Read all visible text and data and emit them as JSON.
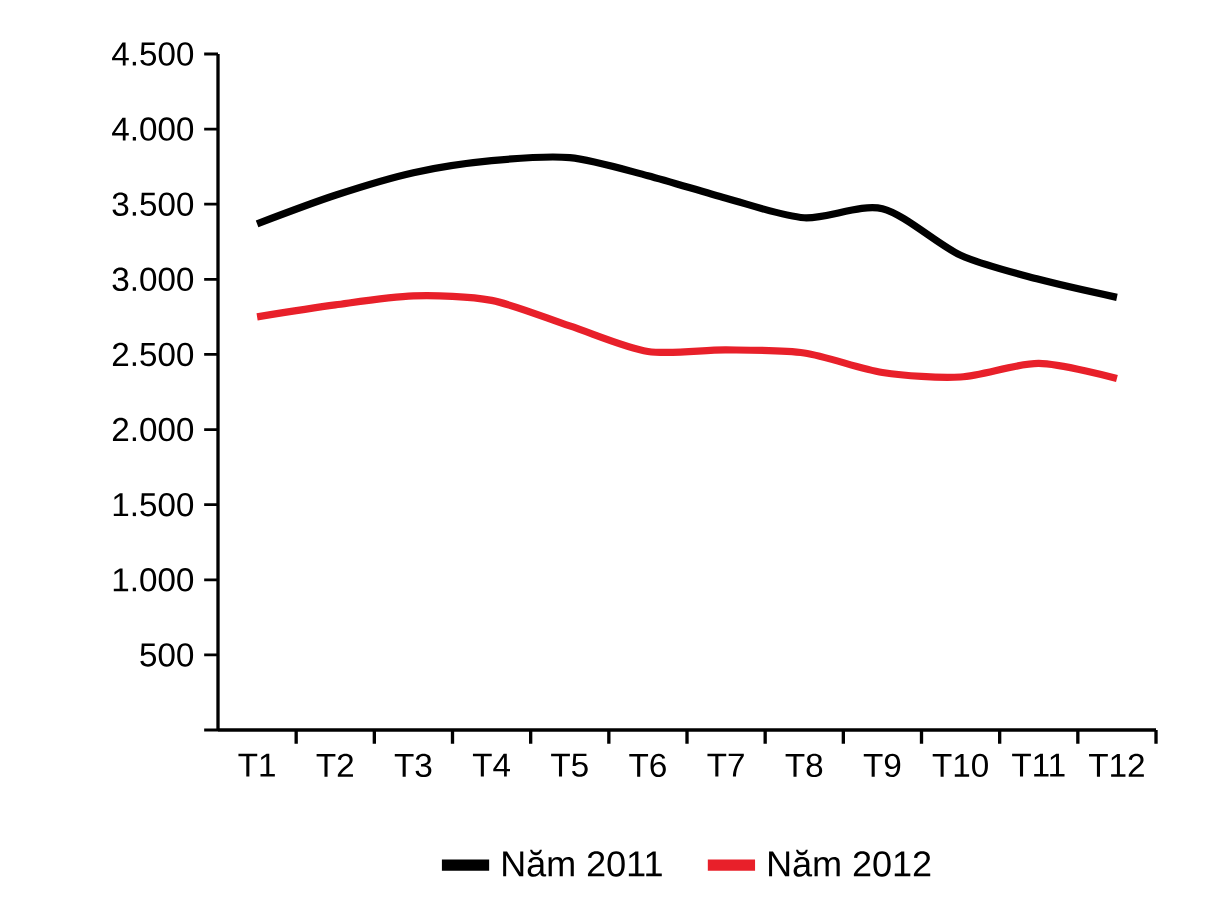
{
  "chart_data": {
    "type": "line",
    "categories": [
      "T1",
      "T2",
      "T3",
      "T4",
      "T5",
      "T6",
      "T7",
      "T8",
      "T9",
      "T10",
      "T11",
      "T12"
    ],
    "series": [
      {
        "name": "Năm 2011",
        "color": "#000000",
        "values": [
          3370,
          3560,
          3710,
          3790,
          3810,
          3690,
          3540,
          3410,
          3470,
          3160,
          3000,
          2880
        ]
      },
      {
        "name": "Năm 2012",
        "color": "#e8202a",
        "values": [
          2750,
          2830,
          2890,
          2860,
          2690,
          2520,
          2530,
          2510,
          2380,
          2350,
          2440,
          2340
        ]
      }
    ],
    "ylim": [
      0,
      4500
    ],
    "yticks": [
      {
        "value": 0,
        "label": null
      },
      500,
      {
        "value": 1000,
        "label": "1.000"
      },
      {
        "value": 1500,
        "label": "1.500"
      },
      {
        "value": 2000,
        "label": "2.000"
      },
      {
        "value": 2500,
        "label": "2.500"
      },
      {
        "value": 3000,
        "label": "3.000"
      },
      {
        "value": 3500,
        "label": "3.500"
      },
      {
        "value": 4000,
        "label": "4.000"
      },
      {
        "value": 4500,
        "label": "4.500"
      }
    ],
    "legend": "bottom",
    "line_style": "solid",
    "marker": "none"
  }
}
